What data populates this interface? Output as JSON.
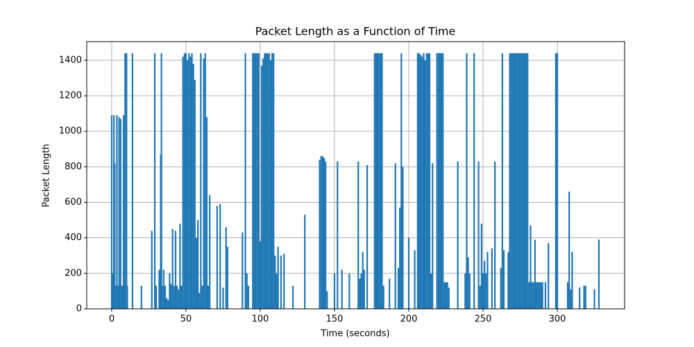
{
  "chart_data": {
    "type": "stem",
    "title": "Packet Length as a Function of Time",
    "x_label": "Time (seconds)",
    "y_label": "Packet Length",
    "color": "#1f77b4",
    "grid": true,
    "xlim": [
      -16.8,
      345.3
    ],
    "ylim": [
      0,
      1505
    ],
    "xticks": [
      0,
      50,
      100,
      150,
      200,
      250,
      300
    ],
    "yticks": [
      0,
      200,
      400,
      600,
      800,
      1000,
      1200,
      1400
    ],
    "x": [
      0,
      0.5,
      1,
      1.5,
      2,
      3,
      3.5,
      4,
      5,
      5.5,
      6,
      7,
      8,
      8.5,
      9,
      10,
      10.5,
      14,
      20,
      27,
      29,
      30,
      32,
      33,
      33.5,
      34,
      35,
      36,
      37,
      38,
      39,
      40,
      41,
      42,
      43,
      44,
      45,
      46,
      47,
      48,
      49,
      50,
      51,
      52,
      53,
      54,
      55,
      56,
      57,
      58,
      59,
      60,
      61,
      62,
      63,
      64,
      65,
      66,
      71,
      73,
      75,
      77,
      78,
      88,
      90,
      91,
      92,
      95,
      96,
      97,
      98,
      99,
      100,
      101,
      102,
      103,
      104,
      105,
      106,
      107,
      108,
      109,
      110,
      111,
      112,
      114,
      116,
      122,
      130,
      140,
      141,
      142,
      143,
      144,
      145,
      150,
      152,
      155,
      160,
      166,
      167,
      168,
      169,
      170,
      172,
      177,
      178,
      179,
      180,
      181,
      182,
      183,
      187,
      191,
      193,
      194,
      195,
      196,
      200,
      204,
      206,
      207,
      208,
      209,
      210,
      211,
      212,
      213,
      214,
      215,
      216,
      219,
      220,
      221,
      222,
      223,
      224,
      225,
      226,
      227,
      233,
      238,
      239,
      240,
      241,
      244,
      247,
      248,
      249,
      250,
      251,
      252,
      253,
      256,
      258,
      262,
      263,
      264,
      267,
      268,
      269,
      270,
      271,
      272,
      273,
      274,
      275,
      276,
      277,
      278,
      279,
      280,
      281,
      282,
      283,
      284,
      285,
      286,
      287,
      288,
      289,
      290,
      292,
      294,
      299,
      300,
      307,
      308,
      309,
      310,
      315,
      318,
      319,
      325,
      328
    ],
    "values": [
      1090,
      200,
      130,
      1090,
      820,
      130,
      1090,
      130,
      1080,
      130,
      1070,
      130,
      1090,
      130,
      1440,
      1440,
      130,
      1440,
      130,
      440,
      1440,
      130,
      220,
      870,
      1440,
      130,
      220,
      130,
      60,
      50,
      200,
      140,
      450,
      130,
      440,
      130,
      110,
      480,
      130,
      1420,
      1440,
      1440,
      1400,
      1440,
      1420,
      1440,
      1380,
      1290,
      400,
      500,
      90,
      1440,
      130,
      1410,
      1440,
      1080,
      130,
      640,
      580,
      590,
      120,
      460,
      350,
      430,
      1440,
      200,
      130,
      1440,
      1440,
      1440,
      1440,
      1440,
      380,
      1370,
      1410,
      1440,
      1440,
      1440,
      1440,
      1400,
      1440,
      1440,
      300,
      200,
      350,
      300,
      310,
      130,
      530,
      840,
      860,
      860,
      850,
      830,
      100,
      200,
      830,
      220,
      200,
      830,
      170,
      200,
      320,
      220,
      810,
      1440,
      1440,
      1440,
      1440,
      1440,
      1440,
      130,
      170,
      820,
      230,
      570,
      1440,
      800,
      400,
      330,
      1440,
      1440,
      1430,
      1420,
      1440,
      1400,
      1440,
      1440,
      1440,
      200,
      820,
      1440,
      1440,
      1440,
      1440,
      1440,
      150,
      150,
      150,
      120,
      830,
      200,
      1440,
      290,
      200,
      1440,
      830,
      130,
      480,
      200,
      270,
      200,
      320,
      340,
      830,
      230,
      1440,
      330,
      320,
      1440,
      1440,
      1440,
      1440,
      1440,
      1440,
      1440,
      1440,
      1440,
      1440,
      1440,
      1440,
      1440,
      150,
      470,
      150,
      150,
      390,
      150,
      150,
      150,
      150,
      150,
      150,
      370,
      1440,
      1440,
      150,
      660,
      110,
      320,
      120,
      130,
      130,
      110,
      390
    ]
  }
}
